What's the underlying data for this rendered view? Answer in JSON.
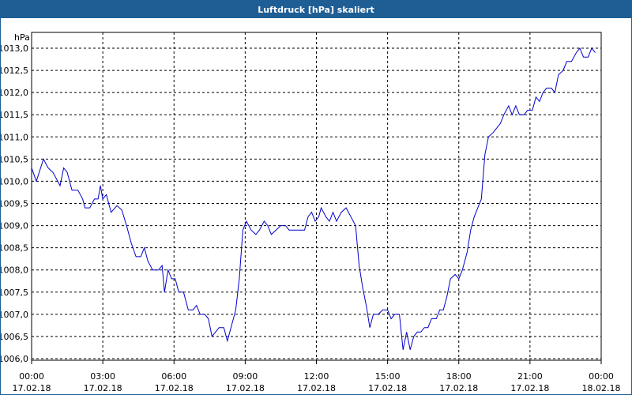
{
  "title": "Luftdruck [hPa] skaliert",
  "chart_data": {
    "type": "line",
    "title": "Luftdruck [hPa] skaliert",
    "unit": "hPa",
    "ylim": [
      1006.0,
      1013.0
    ],
    "y_ticks": [
      "1013,0",
      "1012,5",
      "1012,0",
      "1011,5",
      "1011,0",
      "1010,5",
      "1010,0",
      "1009,5",
      "1009,0",
      "1008,5",
      "1008,0",
      "1007,5",
      "1007,0",
      "1006,5",
      "1006,0"
    ],
    "y_tick_values": [
      1013.0,
      1012.5,
      1012.0,
      1011.5,
      1011.0,
      1010.5,
      1010.0,
      1009.5,
      1009.0,
      1008.5,
      1008.0,
      1007.5,
      1007.0,
      1006.5,
      1006.0
    ],
    "x_ticks": [
      {
        "time": "00:00",
        "date": "17.02.18"
      },
      {
        "time": "03:00",
        "date": "17.02.18"
      },
      {
        "time": "06:00",
        "date": "17.02.18"
      },
      {
        "time": "09:00",
        "date": "17.02.18"
      },
      {
        "time": "12:00",
        "date": "17.02.18"
      },
      {
        "time": "15:00",
        "date": "17.02.18"
      },
      {
        "time": "18:00",
        "date": "17.02.18"
      },
      {
        "time": "21:00",
        "date": "17.02.18"
      },
      {
        "time": "00:00",
        "date": "18.02.18"
      }
    ],
    "x_range_hours": [
      0,
      24
    ],
    "grid": true,
    "line_color": "#0000cc",
    "series": [
      {
        "points": [
          [
            0.0,
            1010.3
          ],
          [
            0.2,
            1010.0
          ],
          [
            0.5,
            1010.5
          ],
          [
            0.7,
            1010.3
          ],
          [
            0.9,
            1010.2
          ],
          [
            1.1,
            1010.0
          ],
          [
            1.2,
            1009.9
          ],
          [
            1.35,
            1010.3
          ],
          [
            1.5,
            1010.2
          ],
          [
            1.7,
            1009.8
          ],
          [
            1.95,
            1009.8
          ],
          [
            2.15,
            1009.6
          ],
          [
            2.25,
            1009.4
          ],
          [
            2.45,
            1009.4
          ],
          [
            2.65,
            1009.6
          ],
          [
            2.8,
            1009.6
          ],
          [
            2.9,
            1009.9
          ],
          [
            3.0,
            1009.6
          ],
          [
            3.15,
            1009.7
          ],
          [
            3.35,
            1009.3
          ],
          [
            3.6,
            1009.45
          ],
          [
            3.8,
            1009.35
          ],
          [
            4.0,
            1009.0
          ],
          [
            4.2,
            1008.6
          ],
          [
            4.4,
            1008.3
          ],
          [
            4.6,
            1008.3
          ],
          [
            4.75,
            1008.5
          ],
          [
            4.9,
            1008.2
          ],
          [
            5.1,
            1008.0
          ],
          [
            5.35,
            1008.0
          ],
          [
            5.5,
            1008.1
          ],
          [
            5.6,
            1007.5
          ],
          [
            5.75,
            1008.0
          ],
          [
            5.9,
            1007.8
          ],
          [
            6.05,
            1007.8
          ],
          [
            6.2,
            1007.5
          ],
          [
            6.4,
            1007.5
          ],
          [
            6.6,
            1007.1
          ],
          [
            6.8,
            1007.1
          ],
          [
            6.95,
            1007.2
          ],
          [
            7.1,
            1007.0
          ],
          [
            7.3,
            1007.0
          ],
          [
            7.45,
            1006.9
          ],
          [
            7.6,
            1006.5
          ],
          [
            7.75,
            1006.6
          ],
          [
            7.9,
            1006.7
          ],
          [
            8.1,
            1006.7
          ],
          [
            8.25,
            1006.4
          ],
          [
            8.45,
            1006.8
          ],
          [
            8.6,
            1007.1
          ],
          [
            8.75,
            1007.8
          ],
          [
            8.9,
            1008.9
          ],
          [
            9.05,
            1009.1
          ],
          [
            9.25,
            1008.9
          ],
          [
            9.45,
            1008.8
          ],
          [
            9.6,
            1008.9
          ],
          [
            9.8,
            1009.1
          ],
          [
            9.95,
            1009.0
          ],
          [
            10.1,
            1008.8
          ],
          [
            10.3,
            1008.9
          ],
          [
            10.5,
            1009.0
          ],
          [
            10.7,
            1009.0
          ],
          [
            10.85,
            1008.9
          ],
          [
            11.1,
            1008.9
          ],
          [
            11.35,
            1008.9
          ],
          [
            11.5,
            1008.9
          ],
          [
            11.65,
            1009.2
          ],
          [
            11.8,
            1009.3
          ],
          [
            11.95,
            1009.1
          ],
          [
            12.1,
            1009.2
          ],
          [
            12.2,
            1009.4
          ],
          [
            12.4,
            1009.2
          ],
          [
            12.55,
            1009.1
          ],
          [
            12.7,
            1009.3
          ],
          [
            12.85,
            1009.1
          ],
          [
            13.05,
            1009.3
          ],
          [
            13.25,
            1009.4
          ],
          [
            13.45,
            1009.2
          ],
          [
            13.65,
            1009.0
          ],
          [
            13.8,
            1008.1
          ],
          [
            13.95,
            1007.6
          ],
          [
            14.1,
            1007.2
          ],
          [
            14.25,
            1006.7
          ],
          [
            14.4,
            1007.0
          ],
          [
            14.6,
            1007.0
          ],
          [
            14.8,
            1007.1
          ],
          [
            15.0,
            1007.1
          ],
          [
            15.15,
            1006.9
          ],
          [
            15.3,
            1007.0
          ],
          [
            15.5,
            1007.0
          ],
          [
            15.65,
            1006.2
          ],
          [
            15.8,
            1006.6
          ],
          [
            15.95,
            1006.2
          ],
          [
            16.1,
            1006.5
          ],
          [
            16.25,
            1006.6
          ],
          [
            16.4,
            1006.6
          ],
          [
            16.55,
            1006.7
          ],
          [
            16.7,
            1006.7
          ],
          [
            16.85,
            1006.9
          ],
          [
            17.05,
            1006.9
          ],
          [
            17.2,
            1007.1
          ],
          [
            17.35,
            1007.1
          ],
          [
            17.5,
            1007.4
          ],
          [
            17.65,
            1007.8
          ],
          [
            17.85,
            1007.9
          ],
          [
            18.0,
            1007.8
          ],
          [
            18.15,
            1008.0
          ],
          [
            18.35,
            1008.4
          ],
          [
            18.5,
            1008.9
          ],
          [
            18.65,
            1009.2
          ],
          [
            18.8,
            1009.4
          ],
          [
            18.95,
            1009.6
          ],
          [
            19.1,
            1010.6
          ],
          [
            19.25,
            1011.0
          ],
          [
            19.45,
            1011.1
          ],
          [
            19.6,
            1011.2
          ],
          [
            19.75,
            1011.3
          ],
          [
            19.9,
            1011.5
          ],
          [
            20.1,
            1011.7
          ],
          [
            20.25,
            1011.5
          ],
          [
            20.4,
            1011.7
          ],
          [
            20.55,
            1011.5
          ],
          [
            20.75,
            1011.5
          ],
          [
            20.9,
            1011.6
          ],
          [
            21.1,
            1011.6
          ],
          [
            21.25,
            1011.9
          ],
          [
            21.4,
            1011.8
          ],
          [
            21.55,
            1012.0
          ],
          [
            21.7,
            1012.1
          ],
          [
            21.9,
            1012.1
          ],
          [
            22.05,
            1012.0
          ],
          [
            22.2,
            1012.4
          ],
          [
            22.4,
            1012.5
          ],
          [
            22.55,
            1012.7
          ],
          [
            22.75,
            1012.7
          ],
          [
            22.95,
            1012.9
          ],
          [
            23.1,
            1013.0
          ],
          [
            23.25,
            1012.8
          ],
          [
            23.45,
            1012.8
          ],
          [
            23.6,
            1013.0
          ],
          [
            23.75,
            1012.9
          ]
        ]
      }
    ]
  }
}
